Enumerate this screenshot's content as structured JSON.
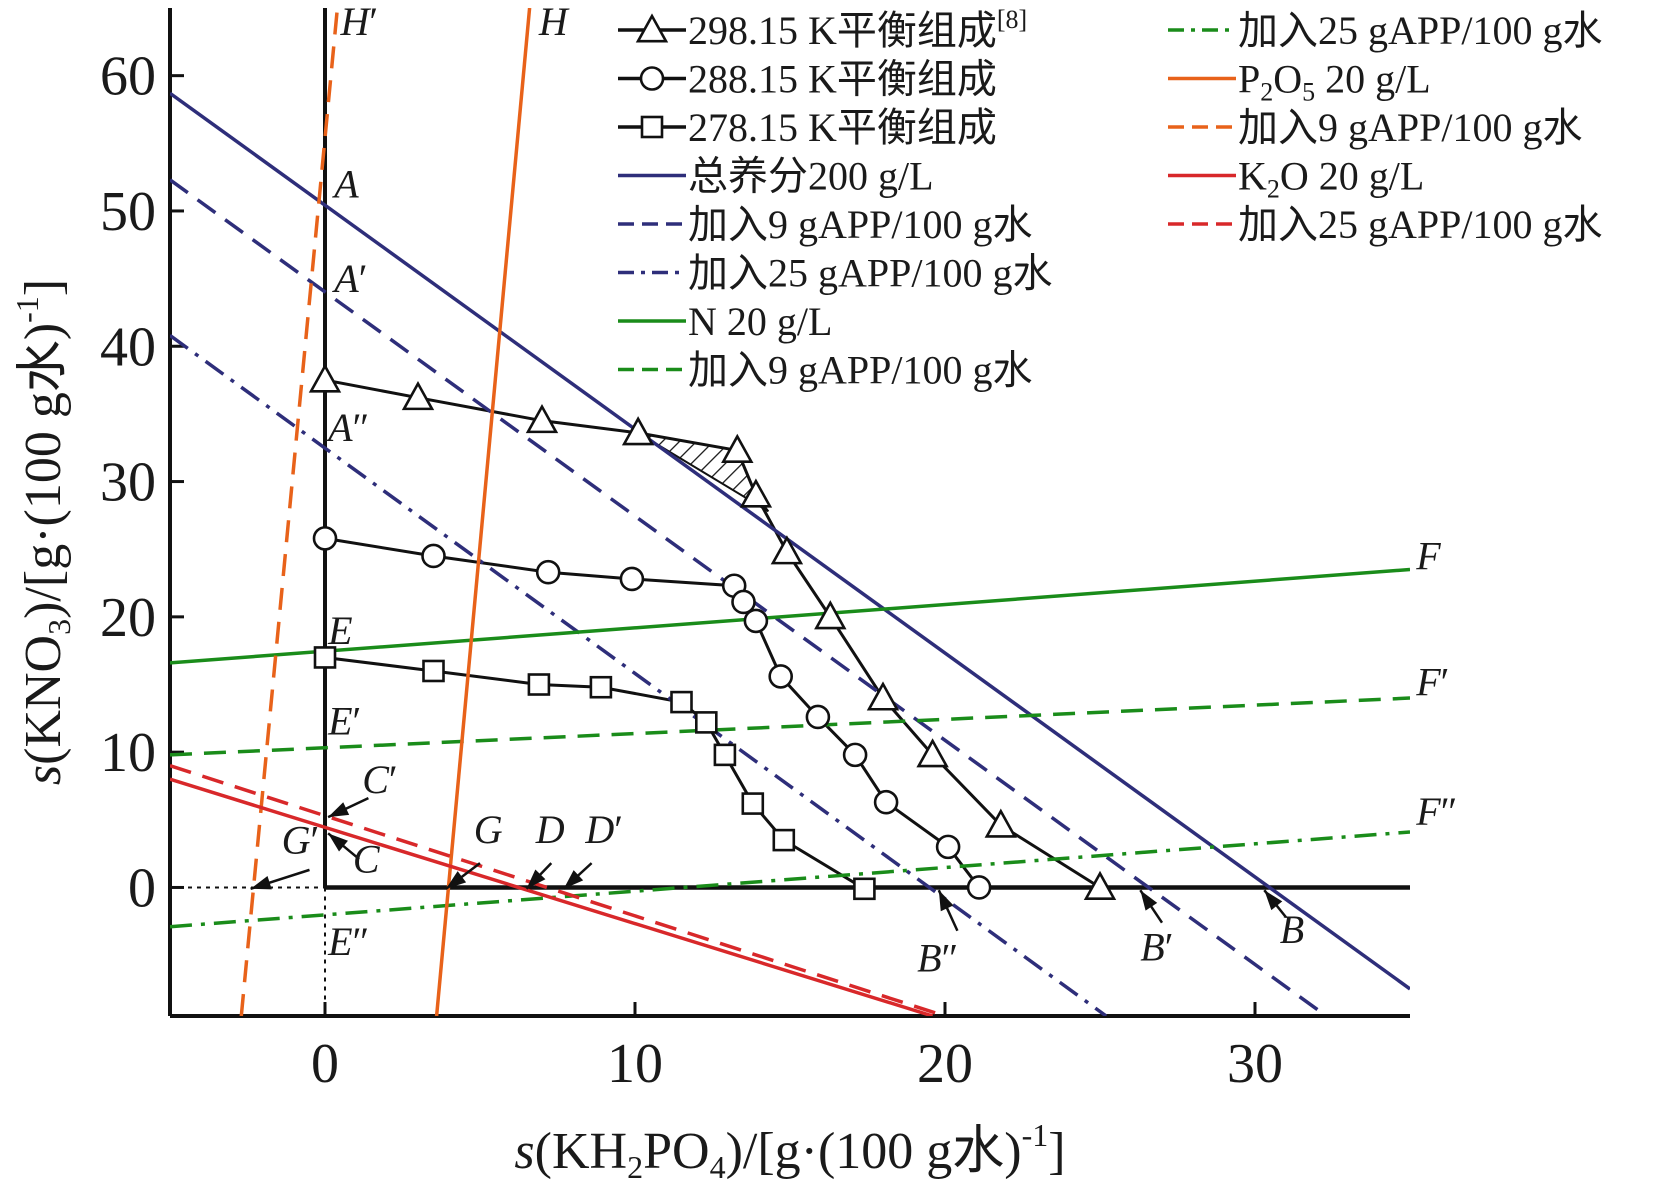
{
  "chart_data": {
    "type": "line",
    "xlabel": "s(KH2PO4)/[g·(100 g水)-1]",
    "ylabel": "s(KNO3)/[g·(100 g水)-1]",
    "xlabel_parts": {
      "pre": "s",
      "main": "(KH",
      "sub": "2",
      "mid": "PO",
      "sub2": "4",
      "post": ")/[g·(100 g水)",
      "sup": "-1",
      "end": "]"
    },
    "ylabel_parts": {
      "pre": "s",
      "main": "(KNO",
      "sub": "3",
      "post": ")/[g·(100 g水)",
      "sup": "-1",
      "end": "]"
    },
    "xlim": [
      -5,
      35
    ],
    "ylim": [
      -9.5,
      65
    ],
    "xticks": [
      0,
      10,
      20,
      30
    ],
    "yticks": [
      0,
      10,
      20,
      30,
      40,
      50,
      60
    ],
    "grid": false,
    "legend_position": "top-right",
    "series": [
      {
        "name": "298.15 K平衡组成[8]",
        "name_main": "298.15 K平衡组成",
        "name_sup": "[8]",
        "marker": "triangle",
        "color": "#111111",
        "dash": "solid",
        "x": [
          0,
          3,
          7,
          10.1,
          13.3,
          13.9,
          14.9,
          16.3,
          18,
          19.6,
          21.8,
          25
        ],
        "y": [
          37.5,
          36.2,
          34.5,
          33.6,
          32.3,
          29,
          24.8,
          20,
          14,
          9.8,
          4.6,
          0
        ]
      },
      {
        "name": "288.15 K平衡组成",
        "marker": "circle",
        "color": "#111111",
        "dash": "solid",
        "x": [
          0,
          3.5,
          7.2,
          9.9,
          13.2,
          13.5,
          13.9,
          14.7,
          15.9,
          17.1,
          18.1,
          20.1,
          21.1
        ],
        "y": [
          25.8,
          24.5,
          23.3,
          22.8,
          22.3,
          21.1,
          19.7,
          15.6,
          12.6,
          9.8,
          6.3,
          3,
          0
        ]
      },
      {
        "name": "278.15 K平衡组成",
        "marker": "square",
        "color": "#111111",
        "dash": "solid",
        "x": [
          0,
          3.5,
          6.9,
          8.9,
          11.5,
          12.3,
          12.9,
          13.8,
          14.8,
          17.4
        ],
        "y": [
          17,
          16,
          15,
          14.8,
          13.7,
          12.2,
          9.8,
          6.2,
          3.5,
          -0.1
        ]
      },
      {
        "name": "总养分200 g/L",
        "color": "#2e2e7a",
        "dash": "solid",
        "x": [
          -5,
          35
        ],
        "y": [
          58.7,
          -7.5
        ]
      },
      {
        "name": "加入9 gAPP/100 g水",
        "color": "#2e2e7a",
        "dash": "dashed",
        "x": [
          -5,
          32.3
        ],
        "y": [
          52.3,
          -9.5
        ]
      },
      {
        "name": "加入25 gAPP/100 g水",
        "color": "#2e2e7a",
        "dash": "dashdot",
        "x": [
          -5,
          25.2
        ],
        "y": [
          40.8,
          -9.5
        ]
      },
      {
        "name": "N 20 g/L",
        "color": "#1a8c1a",
        "dash": "solid",
        "x": [
          -5,
          35
        ],
        "y": [
          16.6,
          23.5
        ]
      },
      {
        "name": "加入9 gAPP/100 g水",
        "color": "#1a8c1a",
        "dash": "dashed",
        "x": [
          -5,
          35
        ],
        "y": [
          9.8,
          14
        ]
      },
      {
        "name": "加入25 gAPP/100 g水",
        "color": "#1a8c1a",
        "dash": "dashdot",
        "x": [
          -5,
          35
        ],
        "y": [
          -2.9,
          4.1
        ]
      },
      {
        "name": "P2O5 20 g/L",
        "name_parts": {
          "pre": "P",
          "sub": "2",
          "mid": "O",
          "sub2": "5",
          "post": " 20 g/L"
        },
        "color": "#e8621a",
        "dash": "solid",
        "x": [
          3.6,
          6.6
        ],
        "y": [
          -9.5,
          65
        ]
      },
      {
        "name": "加入9 gAPP/100 g水",
        "color": "#e8621a",
        "dash": "dashed",
        "x": [
          -2.7,
          0.4
        ],
        "y": [
          -9.5,
          65
        ]
      },
      {
        "name": "K2O 20 g/L",
        "name_parts": {
          "pre": "K",
          "sub": "2",
          "post": "O 20 g/L"
        },
        "color": "#d8282a",
        "dash": "solid",
        "x": [
          -5,
          19.6
        ],
        "y": [
          8,
          -9.5
        ]
      },
      {
        "name": "加入25 gAPP/100 g水",
        "color": "#d8282a",
        "dash": "dashed",
        "x": [
          -5,
          20
        ],
        "y": [
          9,
          -9.5
        ]
      }
    ],
    "guides": [
      {
        "kind": "dotted",
        "x": [
          -5,
          0
        ],
        "y": [
          0,
          0
        ]
      },
      {
        "kind": "dotted",
        "x": [
          0,
          0
        ],
        "y": [
          0,
          -9.5
        ]
      }
    ],
    "shaded_region": [
      [
        10.1,
        33.6
      ],
      [
        13.3,
        32.3
      ],
      [
        13.9,
        29
      ],
      [
        14.3,
        27.8
      ]
    ],
    "point_labels": [
      {
        "text": "H",
        "prime": "′",
        "x": 0.5,
        "y": 63
      },
      {
        "text": "H",
        "prime": "",
        "x": 6.9,
        "y": 63
      },
      {
        "text": "A",
        "prime": "",
        "x": 0.3,
        "y": 51
      },
      {
        "text": "A",
        "prime": "′",
        "x": 0.3,
        "y": 44
      },
      {
        "text": "A",
        "prime": "″",
        "x": 0.1,
        "y": 33
      },
      {
        "text": "E",
        "prime": "",
        "x": 0.1,
        "y": 18
      },
      {
        "text": "E",
        "prime": "′",
        "x": 0.1,
        "y": 11.3
      },
      {
        "text": "E",
        "prime": "″",
        "x": 0.1,
        "y": -5
      },
      {
        "text": "C",
        "prime": "′",
        "x": 1.2,
        "y": 7
      },
      {
        "text": "C",
        "prime": "",
        "x": 0.9,
        "y": 1.1
      },
      {
        "text": "G",
        "prime": "′",
        "x": -1.4,
        "y": 2.5
      },
      {
        "text": "G",
        "prime": "",
        "x": 4.8,
        "y": 3.3
      },
      {
        "text": "D",
        "prime": "",
        "x": 6.8,
        "y": 3.3
      },
      {
        "text": "D",
        "prime": "′",
        "x": 8.4,
        "y": 3.3
      },
      {
        "text": "F",
        "prime": "",
        "x": 35.2,
        "y": 23.5
      },
      {
        "text": "F",
        "prime": "′",
        "x": 35.2,
        "y": 14.2
      },
      {
        "text": "F",
        "prime": "″",
        "x": 35.2,
        "y": 4.6
      },
      {
        "text": "B",
        "prime": "″",
        "x": 19.1,
        "y": -6.2
      },
      {
        "text": "B",
        "prime": "′",
        "x": 26.3,
        "y": -5.4
      },
      {
        "text": "B",
        "prime": "",
        "x": 30.8,
        "y": -4.1
      }
    ],
    "arrows": [
      {
        "from": [
          1.4,
          6.6
        ],
        "to": [
          0.1,
          5.2
        ]
      },
      {
        "from": [
          1.1,
          2.1
        ],
        "to": [
          0.1,
          4.0
        ]
      },
      {
        "from": [
          -0.5,
          1.3
        ],
        "to": [
          -2.4,
          -0.1
        ]
      },
      {
        "from": [
          5.0,
          1.8
        ],
        "to": [
          3.9,
          -0.1
        ]
      },
      {
        "from": [
          7.3,
          1.8
        ],
        "to": [
          6.5,
          -0.1
        ]
      },
      {
        "from": [
          8.6,
          1.8
        ],
        "to": [
          7.7,
          -0.1
        ]
      },
      {
        "from": [
          20.4,
          -3.2
        ],
        "to": [
          19.8,
          -0.2
        ]
      },
      {
        "from": [
          27.0,
          -2.6
        ],
        "to": [
          26.3,
          -0.2
        ]
      },
      {
        "from": [
          31.0,
          -2.2
        ],
        "to": [
          30.3,
          -0.2
        ]
      }
    ]
  }
}
